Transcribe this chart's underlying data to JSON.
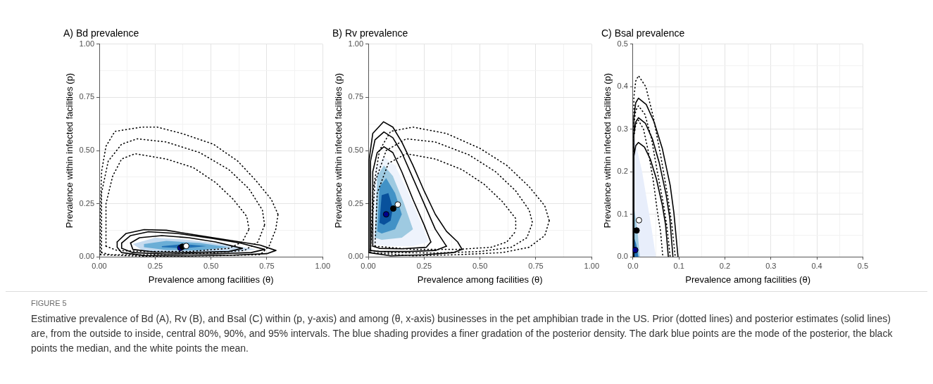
{
  "chart_data": [
    {
      "type": "line",
      "title": "A) Bd prevalence",
      "xlabel": "Prevalence among facilities (θ)",
      "ylabel": "Prevalence within infected facilities (p)",
      "xlim": [
        0,
        1
      ],
      "ylim": [
        0,
        1
      ],
      "grid": true,
      "xticks": [
        {
          "value": 0,
          "label": "0.00"
        },
        {
          "value": 0.125,
          "label": null
        },
        {
          "value": 0.25,
          "label": "0.25"
        },
        {
          "value": 0.375,
          "label": null
        },
        {
          "value": 0.5,
          "label": "0.50"
        },
        {
          "value": 0.625,
          "label": null
        },
        {
          "value": 0.75,
          "label": "0.75"
        },
        {
          "value": 0.875,
          "label": null
        },
        {
          "value": 1,
          "label": "1.00"
        }
      ],
      "yticks": [
        {
          "value": 0,
          "label": "0.00"
        },
        {
          "value": 0.125,
          "label": null
        },
        {
          "value": 0.25,
          "label": "0.25"
        },
        {
          "value": 0.375,
          "label": null
        },
        {
          "value": 0.5,
          "label": "0.50"
        },
        {
          "value": 0.625,
          "label": null
        },
        {
          "value": 0.75,
          "label": "0.75"
        },
        {
          "value": 0.875,
          "label": null
        },
        {
          "value": 1,
          "label": "1.00"
        }
      ],
      "series": [
        {
          "type": "area",
          "color": "#c6dbef",
          "x": [
            0.15,
            0.25,
            0.4,
            0.55,
            0.7,
            0.6,
            0.4,
            0.2,
            0.15
          ],
          "values": [
            0.06,
            0.09,
            0.08,
            0.06,
            0.035,
            0.022,
            0.02,
            0.025,
            0.06
          ]
        },
        {
          "type": "area",
          "color": "#6baed6",
          "x": [
            0.2,
            0.3,
            0.45,
            0.58,
            0.45,
            0.3,
            0.2,
            0.2
          ],
          "values": [
            0.06,
            0.075,
            0.065,
            0.045,
            0.03,
            0.032,
            0.045,
            0.06
          ]
        },
        {
          "type": "area",
          "color": "#2171b5",
          "x": [
            0.28,
            0.38,
            0.48,
            0.38,
            0.28,
            0.28
          ],
          "values": [
            0.05,
            0.06,
            0.05,
            0.04,
            0.045,
            0.05
          ]
        },
        {
          "type": "line",
          "line_style": "dotted",
          "color": "#000000",
          "x": [
            0.005,
            0.005,
            0.01,
            0.03,
            0.07,
            0.19,
            0.26,
            0.37,
            0.51,
            0.62,
            0.7,
            0.77,
            0.8
          ],
          "values": [
            0.01,
            0.2,
            0.4,
            0.52,
            0.59,
            0.61,
            0.61,
            0.58,
            0.53,
            0.45,
            0.36,
            0.27,
            0.2
          ]
        },
        {
          "type": "line",
          "line_style": "dotted",
          "color": "#000000",
          "x": [
            0.005,
            0.2,
            0.5,
            0.72,
            0.76,
            0.79,
            0.8
          ],
          "values": [
            0.01,
            0.003,
            0.005,
            0.01,
            0.05,
            0.13,
            0.2
          ]
        },
        {
          "type": "line",
          "line_style": "dotted",
          "color": "#000000",
          "x": [
            0.01,
            0.01,
            0.04,
            0.1,
            0.17,
            0.3,
            0.45,
            0.58,
            0.67,
            0.73,
            0.74
          ],
          "values": [
            0.02,
            0.3,
            0.45,
            0.53,
            0.555,
            0.54,
            0.49,
            0.41,
            0.32,
            0.22,
            0.15
          ]
        },
        {
          "type": "line",
          "line_style": "dotted",
          "color": "#000000",
          "x": [
            0.01,
            0.05,
            0.2,
            0.45,
            0.65,
            0.71,
            0.74
          ],
          "values": [
            0.02,
            0.01,
            0.01,
            0.015,
            0.03,
            0.07,
            0.15
          ]
        },
        {
          "type": "line",
          "line_style": "dotted",
          "color": "#000000",
          "x": [
            0.03,
            0.03,
            0.06,
            0.1,
            0.16,
            0.3,
            0.42,
            0.52,
            0.6,
            0.66,
            0.67
          ],
          "values": [
            0.05,
            0.25,
            0.38,
            0.46,
            0.485,
            0.46,
            0.42,
            0.35,
            0.27,
            0.19,
            0.13
          ]
        },
        {
          "type": "line",
          "line_style": "dotted",
          "color": "#000000",
          "x": [
            0.03,
            0.08,
            0.2,
            0.4,
            0.58,
            0.64,
            0.67
          ],
          "values": [
            0.05,
            0.03,
            0.025,
            0.025,
            0.04,
            0.07,
            0.13
          ]
        },
        {
          "type": "line",
          "line_style": "solid",
          "color": "#000000",
          "x": [
            0.08,
            0.12,
            0.2,
            0.3,
            0.45,
            0.6,
            0.72,
            0.79
          ],
          "values": [
            0.07,
            0.11,
            0.128,
            0.125,
            0.1,
            0.075,
            0.055,
            0.03
          ]
        },
        {
          "type": "line",
          "line_style": "solid",
          "color": "#000000",
          "x": [
            0.08,
            0.08,
            0.1,
            0.2,
            0.4,
            0.6,
            0.75,
            0.79
          ],
          "values": [
            0.07,
            0.045,
            0.02,
            0.006,
            0.005,
            0.008,
            0.015,
            0.03
          ]
        },
        {
          "type": "line",
          "line_style": "solid",
          "color": "#000000",
          "x": [
            0.1,
            0.14,
            0.22,
            0.35,
            0.5,
            0.63,
            0.74
          ],
          "values": [
            0.065,
            0.1,
            0.118,
            0.11,
            0.088,
            0.065,
            0.035
          ]
        },
        {
          "type": "line",
          "line_style": "solid",
          "color": "#000000",
          "x": [
            0.1,
            0.1,
            0.15,
            0.3,
            0.5,
            0.68,
            0.74
          ],
          "values": [
            0.065,
            0.04,
            0.02,
            0.013,
            0.014,
            0.02,
            0.035
          ]
        },
        {
          "type": "line",
          "line_style": "solid",
          "color": "#000000",
          "x": [
            0.14,
            0.18,
            0.28,
            0.4,
            0.52,
            0.64
          ],
          "values": [
            0.065,
            0.09,
            0.1,
            0.09,
            0.07,
            0.04
          ]
        },
        {
          "type": "line",
          "line_style": "solid",
          "color": "#000000",
          "x": [
            0.14,
            0.15,
            0.25,
            0.4,
            0.58,
            0.64
          ],
          "values": [
            0.065,
            0.035,
            0.022,
            0.02,
            0.025,
            0.04
          ]
        },
        {
          "type": "scatter",
          "marker": "circle",
          "color": "#00008b",
          "x": [
            0.363
          ],
          "values": [
            0.042
          ]
        },
        {
          "type": "scatter",
          "marker": "circle",
          "color": "#000000",
          "x": [
            0.372
          ],
          "values": [
            0.048
          ]
        },
        {
          "type": "scatter",
          "marker": "circle",
          "color": "#ffffff",
          "x": [
            0.389
          ],
          "values": [
            0.051
          ]
        }
      ]
    },
    {
      "type": "line",
      "title": "B) Rv prevalence",
      "xlabel": "Prevalence among facilities (θ)",
      "ylabel": "Prevalence within infected facilities (p)",
      "xlim": [
        0,
        1
      ],
      "ylim": [
        0,
        1
      ],
      "grid": true,
      "xticks": [
        {
          "value": 0,
          "label": "0.00"
        },
        {
          "value": 0.125,
          "label": null
        },
        {
          "value": 0.25,
          "label": "0.25"
        },
        {
          "value": 0.375,
          "label": null
        },
        {
          "value": 0.5,
          "label": "0.50"
        },
        {
          "value": 0.625,
          "label": null
        },
        {
          "value": 0.75,
          "label": "0.75"
        },
        {
          "value": 0.875,
          "label": null
        },
        {
          "value": 1,
          "label": "1.00"
        }
      ],
      "yticks": [
        {
          "value": 0,
          "label": "0.00"
        },
        {
          "value": 0.125,
          "label": null
        },
        {
          "value": 0.25,
          "label": "0.25"
        },
        {
          "value": 0.375,
          "label": null
        },
        {
          "value": 0.5,
          "label": "0.50"
        },
        {
          "value": 0.625,
          "label": null
        },
        {
          "value": 0.75,
          "label": "0.75"
        },
        {
          "value": 0.875,
          "label": null
        },
        {
          "value": 1,
          "label": "1.00"
        }
      ],
      "series": [
        {
          "type": "area",
          "color": "#eef3fc",
          "x": [
            0.02,
            0.03,
            0.07,
            0.12,
            0.18,
            0.24,
            0.27,
            0.2,
            0.08,
            0.02
          ],
          "values": [
            0.06,
            0.42,
            0.47,
            0.43,
            0.3,
            0.15,
            0.07,
            0.05,
            0.05,
            0.06
          ]
        },
        {
          "type": "area",
          "color": "#9ecae1",
          "x": [
            0.03,
            0.04,
            0.07,
            0.11,
            0.16,
            0.2,
            0.15,
            0.06,
            0.03
          ],
          "values": [
            0.09,
            0.38,
            0.43,
            0.38,
            0.25,
            0.13,
            0.09,
            0.08,
            0.09
          ]
        },
        {
          "type": "area",
          "color": "#4292c6",
          "x": [
            0.04,
            0.05,
            0.08,
            0.12,
            0.15,
            0.12,
            0.06,
            0.04
          ],
          "values": [
            0.12,
            0.33,
            0.37,
            0.3,
            0.2,
            0.13,
            0.11,
            0.12
          ]
        },
        {
          "type": "area",
          "color": "#08519c",
          "x": [
            0.05,
            0.06,
            0.09,
            0.11,
            0.1,
            0.07,
            0.05
          ],
          "values": [
            0.16,
            0.29,
            0.3,
            0.23,
            0.17,
            0.15,
            0.16
          ]
        },
        {
          "type": "line",
          "line_style": "dotted",
          "color": "#000000",
          "x": [
            0.01,
            0.02,
            0.05,
            0.1,
            0.2,
            0.35,
            0.5,
            0.62,
            0.72,
            0.79,
            0.81
          ],
          "values": [
            0.02,
            0.3,
            0.5,
            0.59,
            0.61,
            0.58,
            0.51,
            0.43,
            0.33,
            0.24,
            0.17
          ]
        },
        {
          "type": "line",
          "line_style": "dotted",
          "color": "#000000",
          "x": [
            0.01,
            0.2,
            0.4,
            0.6,
            0.72,
            0.79,
            0.81
          ],
          "values": [
            0.02,
            0.005,
            0.01,
            0.02,
            0.045,
            0.1,
            0.17
          ]
        },
        {
          "type": "line",
          "line_style": "dotted",
          "color": "#000000",
          "x": [
            0.01,
            0.03,
            0.08,
            0.17,
            0.3,
            0.45,
            0.57,
            0.66,
            0.72,
            0.735
          ],
          "values": [
            0.03,
            0.35,
            0.5,
            0.555,
            0.54,
            0.48,
            0.4,
            0.31,
            0.22,
            0.16
          ]
        },
        {
          "type": "line",
          "line_style": "dotted",
          "color": "#000000",
          "x": [
            0.01,
            0.1,
            0.3,
            0.5,
            0.64,
            0.71,
            0.735
          ],
          "values": [
            0.03,
            0.02,
            0.018,
            0.025,
            0.045,
            0.09,
            0.16
          ]
        },
        {
          "type": "line",
          "line_style": "dotted",
          "color": "#000000",
          "x": [
            0.03,
            0.04,
            0.09,
            0.17,
            0.3,
            0.42,
            0.52,
            0.6,
            0.66,
            0.66
          ],
          "values": [
            0.05,
            0.3,
            0.44,
            0.485,
            0.46,
            0.41,
            0.34,
            0.26,
            0.18,
            0.12
          ]
        },
        {
          "type": "line",
          "line_style": "dotted",
          "color": "#000000",
          "x": [
            0.03,
            0.2,
            0.4,
            0.55,
            0.62,
            0.66
          ],
          "values": [
            0.05,
            0.035,
            0.035,
            0.045,
            0.07,
            0.12
          ]
        },
        {
          "type": "line",
          "line_style": "solid",
          "color": "#000000",
          "x": [
            0.003,
            0.003,
            0.02,
            0.068,
            0.11,
            0.15,
            0.2,
            0.25,
            0.3,
            0.35,
            0.4,
            0.42
          ],
          "values": [
            0.02,
            0.45,
            0.58,
            0.635,
            0.61,
            0.54,
            0.43,
            0.31,
            0.2,
            0.12,
            0.07,
            0.035
          ]
        },
        {
          "type": "line",
          "line_style": "solid",
          "color": "#000000",
          "x": [
            0.003,
            0.1,
            0.25,
            0.38,
            0.42
          ],
          "values": [
            0.02,
            0.005,
            0.01,
            0.02,
            0.035
          ]
        },
        {
          "type": "line",
          "line_style": "solid",
          "color": "#000000",
          "x": [
            0.01,
            0.01,
            0.03,
            0.07,
            0.11,
            0.15,
            0.2,
            0.25,
            0.3,
            0.35
          ],
          "values": [
            0.03,
            0.45,
            0.55,
            0.587,
            0.56,
            0.49,
            0.37,
            0.25,
            0.13,
            0.05
          ]
        },
        {
          "type": "line",
          "line_style": "solid",
          "color": "#000000",
          "x": [
            0.01,
            0.05,
            0.18,
            0.3,
            0.35
          ],
          "values": [
            0.03,
            0.025,
            0.025,
            0.03,
            0.05
          ]
        },
        {
          "type": "line",
          "line_style": "solid",
          "color": "#000000",
          "x": [
            0.02,
            0.02,
            0.04,
            0.07,
            0.11,
            0.15,
            0.2,
            0.25,
            0.28
          ],
          "values": [
            0.05,
            0.4,
            0.49,
            0.518,
            0.49,
            0.4,
            0.27,
            0.15,
            0.07
          ]
        },
        {
          "type": "line",
          "line_style": "solid",
          "color": "#000000",
          "x": [
            0.02,
            0.05,
            0.15,
            0.26,
            0.28
          ],
          "values": [
            0.05,
            0.04,
            0.038,
            0.045,
            0.07
          ]
        },
        {
          "type": "scatter",
          "marker": "circle",
          "color": "#00008b",
          "x": [
            0.08
          ],
          "values": [
            0.2
          ]
        },
        {
          "type": "scatter",
          "marker": "circle",
          "color": "#000000",
          "x": [
            0.112
          ],
          "values": [
            0.227
          ]
        },
        {
          "type": "scatter",
          "marker": "circle",
          "color": "#ffffff",
          "x": [
            0.132
          ],
          "values": [
            0.246
          ]
        }
      ]
    },
    {
      "type": "line",
      "title": "C) Bsal prevalence",
      "xlabel": "Prevalence among facilities (θ)",
      "ylabel": "Prevalence within infected facilities (p)",
      "xlim": [
        0,
        0.5
      ],
      "ylim": [
        0,
        0.5
      ],
      "grid": true,
      "xticks": [
        {
          "value": 0,
          "label": "0.0"
        },
        {
          "value": 0.05,
          "label": null
        },
        {
          "value": 0.1,
          "label": "0.1"
        },
        {
          "value": 0.15,
          "label": null
        },
        {
          "value": 0.2,
          "label": "0.2"
        },
        {
          "value": 0.25,
          "label": null
        },
        {
          "value": 0.3,
          "label": "0.3"
        },
        {
          "value": 0.35,
          "label": null
        },
        {
          "value": 0.4,
          "label": "0.4"
        },
        {
          "value": 0.45,
          "label": null
        },
        {
          "value": 0.5,
          "label": "0.5"
        }
      ],
      "yticks": [
        {
          "value": 0,
          "label": "0.0"
        },
        {
          "value": 0.05,
          "label": null
        },
        {
          "value": 0.1,
          "label": "0.1"
        },
        {
          "value": 0.15,
          "label": null
        },
        {
          "value": 0.2,
          "label": "0.2"
        },
        {
          "value": 0.25,
          "label": null
        },
        {
          "value": 0.3,
          "label": "0.3"
        },
        {
          "value": 0.35,
          "label": null
        },
        {
          "value": 0.4,
          "label": "0.4"
        },
        {
          "value": 0.45,
          "label": null
        },
        {
          "value": 0.5,
          "label": "0.5"
        }
      ],
      "series": [
        {
          "type": "area",
          "color": "#e8eefb",
          "x": [
            0.001,
            0.001,
            0.02,
            0.04,
            0.05,
            0.001
          ],
          "values": [
            0,
            0.29,
            0.2,
            0.07,
            0,
            0
          ]
        },
        {
          "type": "area",
          "color": "#9ecae1",
          "x": [
            0.001,
            0.001,
            0.01,
            0.015,
            0.001
          ],
          "values": [
            0,
            0.125,
            0.06,
            0,
            0
          ]
        },
        {
          "type": "area",
          "color": "#2171b5",
          "x": [
            0.001,
            0.001,
            0.007,
            0.012,
            0.001
          ],
          "values": [
            0,
            0.05,
            0.03,
            0,
            0
          ]
        },
        {
          "type": "line",
          "line_style": "dotted",
          "color": "#000000",
          "x": [
            0.002,
            0.002,
            0.006,
            0.012,
            0.028,
            0.044,
            0.06,
            0.076,
            0.084,
            0.092
          ],
          "values": [
            0,
            0.375,
            0.413,
            0.426,
            0.4,
            0.33,
            0.24,
            0.14,
            0.08,
            0
          ]
        },
        {
          "type": "line",
          "line_style": "dotted",
          "color": "#000000",
          "x": [
            0.002,
            0.002,
            0.006,
            0.012,
            0.026,
            0.04,
            0.053,
            0.067,
            0.074,
            0.081
          ],
          "values": [
            0,
            0.312,
            0.344,
            0.355,
            0.335,
            0.28,
            0.2,
            0.12,
            0.07,
            0
          ]
        },
        {
          "type": "line",
          "line_style": "dotted",
          "color": "#000000",
          "x": [
            0.002,
            0.002,
            0.006,
            0.012,
            0.023,
            0.033,
            0.044,
            0.054,
            0.06,
            0.065
          ],
          "values": [
            0,
            0.282,
            0.311,
            0.321,
            0.3,
            0.25,
            0.18,
            0.1,
            0.06,
            0
          ]
        },
        {
          "type": "line",
          "line_style": "solid",
          "color": "#000000",
          "x": [
            0.002,
            0.002,
            0.006,
            0.012,
            0.029,
            0.046,
            0.064,
            0.081,
            0.089,
            0.098
          ],
          "values": [
            0,
            0.328,
            0.362,
            0.373,
            0.358,
            0.317,
            0.254,
            0.168,
            0.104,
            0
          ]
        },
        {
          "type": "line",
          "line_style": "solid",
          "color": "#000000",
          "x": [
            0.002,
            0.002,
            0.006,
            0.012,
            0.027,
            0.042,
            0.057,
            0.072,
            0.08,
            0.087
          ],
          "values": [
            0,
            0.288,
            0.317,
            0.327,
            0.314,
            0.278,
            0.222,
            0.147,
            0.092,
            0
          ]
        },
        {
          "type": "line",
          "line_style": "solid",
          "color": "#000000",
          "x": [
            0.002,
            0.002,
            0.006,
            0.012,
            0.025,
            0.038,
            0.051,
            0.064,
            0.071,
            0.077
          ],
          "values": [
            0,
            0.237,
            0.261,
            0.269,
            0.258,
            0.229,
            0.183,
            0.121,
            0.075,
            0
          ]
        },
        {
          "type": "scatter",
          "marker": "circle",
          "color": "#00008b",
          "x": [
            0.005
          ],
          "values": [
            0.016
          ]
        },
        {
          "type": "scatter",
          "marker": "circle",
          "color": "#000000",
          "x": [
            0.008
          ],
          "values": [
            0.062
          ]
        },
        {
          "type": "scatter",
          "marker": "circle",
          "color": "#ffffff",
          "x": [
            0.013
          ],
          "values": [
            0.086
          ]
        }
      ]
    },
    {
      "type": "other",
      "title": "FIGURE 5",
      "annotations": [
        "Estimative prevalence of Bd (A), Rv (B), and Bsal (C) within (p, y-axis) and among (θ, x-axis) businesses in the pet amphibian trade in the US. Prior (dotted lines) and posterior estimates (solid lines) are, from the outside to inside, central 80%, 90%, and 95% intervals. The blue shading provides a finer gradation of the posterior density. The dark blue points are the mode of the posterior, the black points the median, and the white points the mean."
      ]
    }
  ]
}
